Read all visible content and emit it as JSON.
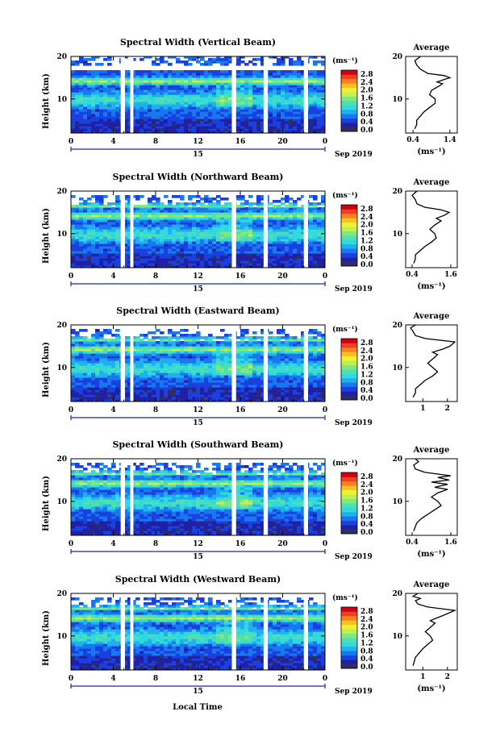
{
  "colorbar": {
    "unit": "(ms⁻¹)",
    "ticks": [
      "2.8",
      "2.4",
      "2.0",
      "1.6",
      "1.2",
      "0.8",
      "0.4",
      "0.0"
    ],
    "colors": [
      "#303060",
      "#2020a0",
      "#1a40e0",
      "#1878f0",
      "#20b0f0",
      "#30d8e0",
      "#50e0b0",
      "#80e880",
      "#c0f050",
      "#f0f030",
      "#f8c020",
      "#f88020",
      "#f04020",
      "#d00010"
    ]
  },
  "footer": {
    "xlabel": "Local Time"
  },
  "chart_data": [
    {
      "type": "heatmap",
      "title": "Spectral Width (Vertical Beam)",
      "ylabel": "Height (km)",
      "x_ticks": [
        "0",
        "4",
        "8",
        "12",
        "16",
        "20",
        "0"
      ],
      "date_label": "15",
      "date_suffix": "Sep 2019",
      "ylim": [
        2,
        20
      ],
      "y_ticks": [
        "20",
        "10"
      ],
      "gaps_hours": [
        [
          4.7,
          5.1
        ],
        [
          5.6,
          5.9
        ],
        [
          15.2,
          15.6
        ],
        [
          18.2,
          18.6
        ],
        [
          22.0,
          22.4
        ]
      ],
      "profile": {
        "title": "Average",
        "xlabel": "(ms⁻¹)",
        "x_ticks": [
          "0.4",
          "1.4"
        ],
        "xlim": [
          0.2,
          1.6
        ],
        "points": [
          [
            0.45,
            3
          ],
          [
            0.5,
            4
          ],
          [
            0.5,
            5
          ],
          [
            0.6,
            6
          ],
          [
            0.7,
            7
          ],
          [
            0.85,
            8
          ],
          [
            1.0,
            9
          ],
          [
            1.0,
            10
          ],
          [
            0.85,
            11
          ],
          [
            0.9,
            12
          ],
          [
            1.1,
            13
          ],
          [
            1.2,
            13.6
          ],
          [
            1.05,
            14
          ],
          [
            1.25,
            14.6
          ],
          [
            1.4,
            15
          ],
          [
            1.25,
            15.5
          ],
          [
            0.8,
            16
          ],
          [
            0.6,
            17
          ],
          [
            0.5,
            18
          ],
          [
            0.45,
            19
          ],
          [
            0.6,
            20
          ]
        ]
      }
    },
    {
      "type": "heatmap",
      "title": "Spectral Width (Northward Beam)",
      "ylabel": "Height (km)",
      "x_ticks": [
        "0",
        "4",
        "8",
        "12",
        "16",
        "20",
        "0"
      ],
      "date_label": "15",
      "date_suffix": "Sep 2019",
      "ylim": [
        2,
        20
      ],
      "y_ticks": [
        "20",
        "10"
      ],
      "gaps_hours": [
        [
          4.7,
          5.1
        ],
        [
          5.6,
          5.9
        ],
        [
          15.2,
          15.6
        ],
        [
          18.2,
          18.6
        ],
        [
          22.0,
          22.4
        ]
      ],
      "profile": {
        "title": "Average",
        "xlabel": "(ms⁻¹)",
        "x_ticks": [
          "0.4",
          "1.6"
        ],
        "xlim": [
          0.2,
          1.8
        ],
        "points": [
          [
            0.45,
            3
          ],
          [
            0.5,
            4
          ],
          [
            0.5,
            5
          ],
          [
            0.65,
            6
          ],
          [
            0.8,
            7
          ],
          [
            1.0,
            8
          ],
          [
            1.15,
            9
          ],
          [
            1.1,
            10
          ],
          [
            0.95,
            11
          ],
          [
            1.1,
            12
          ],
          [
            1.3,
            13
          ],
          [
            1.15,
            13.6
          ],
          [
            1.4,
            14.3
          ],
          [
            1.55,
            15
          ],
          [
            1.3,
            15.6
          ],
          [
            0.8,
            16.2
          ],
          [
            0.55,
            17
          ],
          [
            0.5,
            18
          ],
          [
            0.4,
            19
          ],
          [
            0.55,
            20
          ]
        ]
      }
    },
    {
      "type": "heatmap",
      "title": "Spectral Width (Eastward Beam)",
      "ylabel": "Height (km)",
      "x_ticks": [
        "0",
        "4",
        "8",
        "12",
        "16",
        "20",
        "0"
      ],
      "date_label": "15",
      "date_suffix": "Sep 2019",
      "ylim": [
        2,
        20
      ],
      "y_ticks": [
        "20",
        "10"
      ],
      "gaps_hours": [
        [
          4.7,
          5.1
        ],
        [
          5.6,
          5.9
        ],
        [
          15.2,
          15.6
        ],
        [
          18.2,
          18.6
        ],
        [
          22.0,
          22.4
        ]
      ],
      "profile": {
        "title": "Average",
        "xlabel": "",
        "x_ticks": [
          "1",
          "2"
        ],
        "xlim": [
          0.3,
          2.4
        ],
        "points": [
          [
            0.6,
            3
          ],
          [
            0.7,
            4
          ],
          [
            0.7,
            5
          ],
          [
            0.9,
            6
          ],
          [
            1.1,
            7
          ],
          [
            1.4,
            8
          ],
          [
            1.6,
            9
          ],
          [
            1.4,
            10
          ],
          [
            1.2,
            11
          ],
          [
            1.4,
            12
          ],
          [
            1.6,
            13
          ],
          [
            1.4,
            13.6
          ],
          [
            1.8,
            14.3
          ],
          [
            2.1,
            15
          ],
          [
            2.3,
            16
          ],
          [
            1.1,
            16.8
          ],
          [
            0.7,
            17.5
          ],
          [
            0.6,
            18.5
          ],
          [
            0.5,
            19.3
          ],
          [
            0.7,
            20
          ]
        ]
      }
    },
    {
      "type": "heatmap",
      "title": "Spectral Width (Southward Beam)",
      "ylabel": "Height (km)",
      "x_ticks": [
        "0",
        "4",
        "8",
        "12",
        "16",
        "20",
        "0"
      ],
      "date_label": "15",
      "date_suffix": "Sep 2019",
      "ylim": [
        2,
        20
      ],
      "y_ticks": [
        "20",
        "10"
      ],
      "gaps_hours": [
        [
          4.7,
          5.1
        ],
        [
          5.6,
          5.9
        ],
        [
          15.2,
          15.6
        ],
        [
          18.2,
          18.6
        ],
        [
          22.0,
          22.4
        ]
      ],
      "profile": {
        "title": "Average",
        "xlabel": "(ms⁻¹)",
        "x_ticks": [
          "0.4",
          "1.6"
        ],
        "xlim": [
          0.2,
          1.8
        ],
        "points": [
          [
            0.45,
            3
          ],
          [
            0.5,
            4
          ],
          [
            0.55,
            5
          ],
          [
            0.7,
            6
          ],
          [
            0.9,
            7
          ],
          [
            1.1,
            8
          ],
          [
            1.3,
            9
          ],
          [
            1.2,
            10
          ],
          [
            1.0,
            11
          ],
          [
            1.2,
            12
          ],
          [
            1.5,
            12.8
          ],
          [
            1.1,
            13.3
          ],
          [
            1.5,
            14
          ],
          [
            1.0,
            14.5
          ],
          [
            1.55,
            15
          ],
          [
            1.2,
            15.6
          ],
          [
            1.6,
            16
          ],
          [
            0.8,
            16.8
          ],
          [
            0.5,
            17.6
          ],
          [
            0.45,
            18.5
          ],
          [
            0.6,
            19.3
          ],
          [
            0.5,
            20
          ]
        ]
      }
    },
    {
      "type": "heatmap",
      "title": "Spectral Width (Westward Beam)",
      "ylabel": "Height (km)",
      "x_ticks": [
        "0",
        "4",
        "8",
        "12",
        "16",
        "20",
        "0"
      ],
      "date_label": "15",
      "date_suffix": "Sep 2019",
      "ylim": [
        2,
        20
      ],
      "y_ticks": [
        "20",
        "10"
      ],
      "gaps_hours": [
        [
          4.7,
          5.1
        ],
        [
          5.6,
          5.9
        ],
        [
          15.2,
          15.6
        ],
        [
          18.2,
          18.6
        ],
        [
          22.0,
          22.4
        ]
      ],
      "profile": {
        "title": "Average",
        "xlabel": "(ms⁻¹)",
        "x_ticks": [
          "1",
          "2"
        ],
        "xlim": [
          0.3,
          2.4
        ],
        "points": [
          [
            0.6,
            3
          ],
          [
            0.65,
            4
          ],
          [
            0.7,
            5
          ],
          [
            0.85,
            6
          ],
          [
            1.0,
            7
          ],
          [
            1.2,
            8
          ],
          [
            1.4,
            9
          ],
          [
            1.3,
            10
          ],
          [
            1.1,
            11
          ],
          [
            1.3,
            12
          ],
          [
            1.5,
            13
          ],
          [
            1.3,
            13.6
          ],
          [
            1.6,
            14.3
          ],
          [
            1.9,
            15
          ],
          [
            2.3,
            16
          ],
          [
            1.2,
            16.8
          ],
          [
            0.8,
            17.5
          ],
          [
            0.7,
            18.3
          ],
          [
            0.9,
            18.8
          ],
          [
            0.6,
            19.3
          ],
          [
            0.8,
            20
          ]
        ]
      }
    }
  ]
}
